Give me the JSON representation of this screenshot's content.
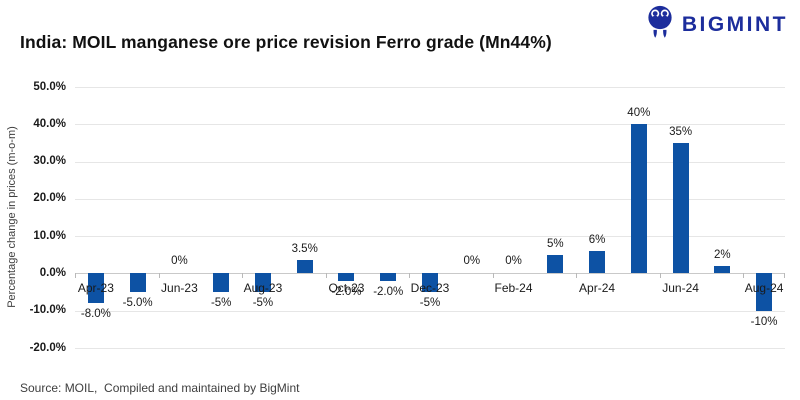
{
  "header": {
    "title": "India: MOIL manganese ore price revision Ferro grade (Mn44%)",
    "brand": "BIGMINT",
    "brand_color": "#1c2d9c",
    "logo_icon": "bigmint-people-icon"
  },
  "chart_data": {
    "type": "bar",
    "title": "India: MOIL manganese ore price revision Ferro grade (Mn44%)",
    "xlabel": "",
    "ylabel": "Percentage change in prices (m-o-m)",
    "ylim": [
      -20,
      50
    ],
    "ytick_step": 10,
    "ytick_labels": [
      "50.0%",
      "40.0%",
      "30.0%",
      "20.0%",
      "10.0%",
      "0.0%",
      "-10.0%",
      "-20.0%"
    ],
    "grid": true,
    "legend": false,
    "bar_color": "#0d52a4",
    "categories": [
      "Apr-23",
      "May-23",
      "Jun-23",
      "Jul-23",
      "Aug-23",
      "Sep-23",
      "Oct-23",
      "Nov-23",
      "Dec-23",
      "Jan-24",
      "Feb-24",
      "Mar-24",
      "Apr-24",
      "May-24",
      "Jun-24",
      "Jul-24",
      "Aug-24"
    ],
    "values": [
      -8,
      -5,
      0,
      -5,
      -5,
      3.5,
      -2,
      -2,
      -5,
      0,
      0,
      5,
      6,
      40,
      35,
      2,
      -10
    ],
    "data_labels": [
      "-8.0%",
      "-5.0%",
      "0%",
      "-5%",
      "-5%",
      "3.5%",
      "-2.0%",
      "-2.0%",
      "-5%",
      "0%",
      "0%",
      "5%",
      "6%",
      "40%",
      "35%",
      "2%",
      "-10%"
    ],
    "x_tick_labels": [
      "Apr-23",
      "Jun-23",
      "Aug-23",
      "Oct-23",
      "Dec-23",
      "Feb-24",
      "Apr-24",
      "Jun-24",
      "Aug-24"
    ],
    "x_tick_every": 2
  },
  "footer": {
    "source": "Source: MOIL,  Compiled and maintained by BigMint"
  }
}
